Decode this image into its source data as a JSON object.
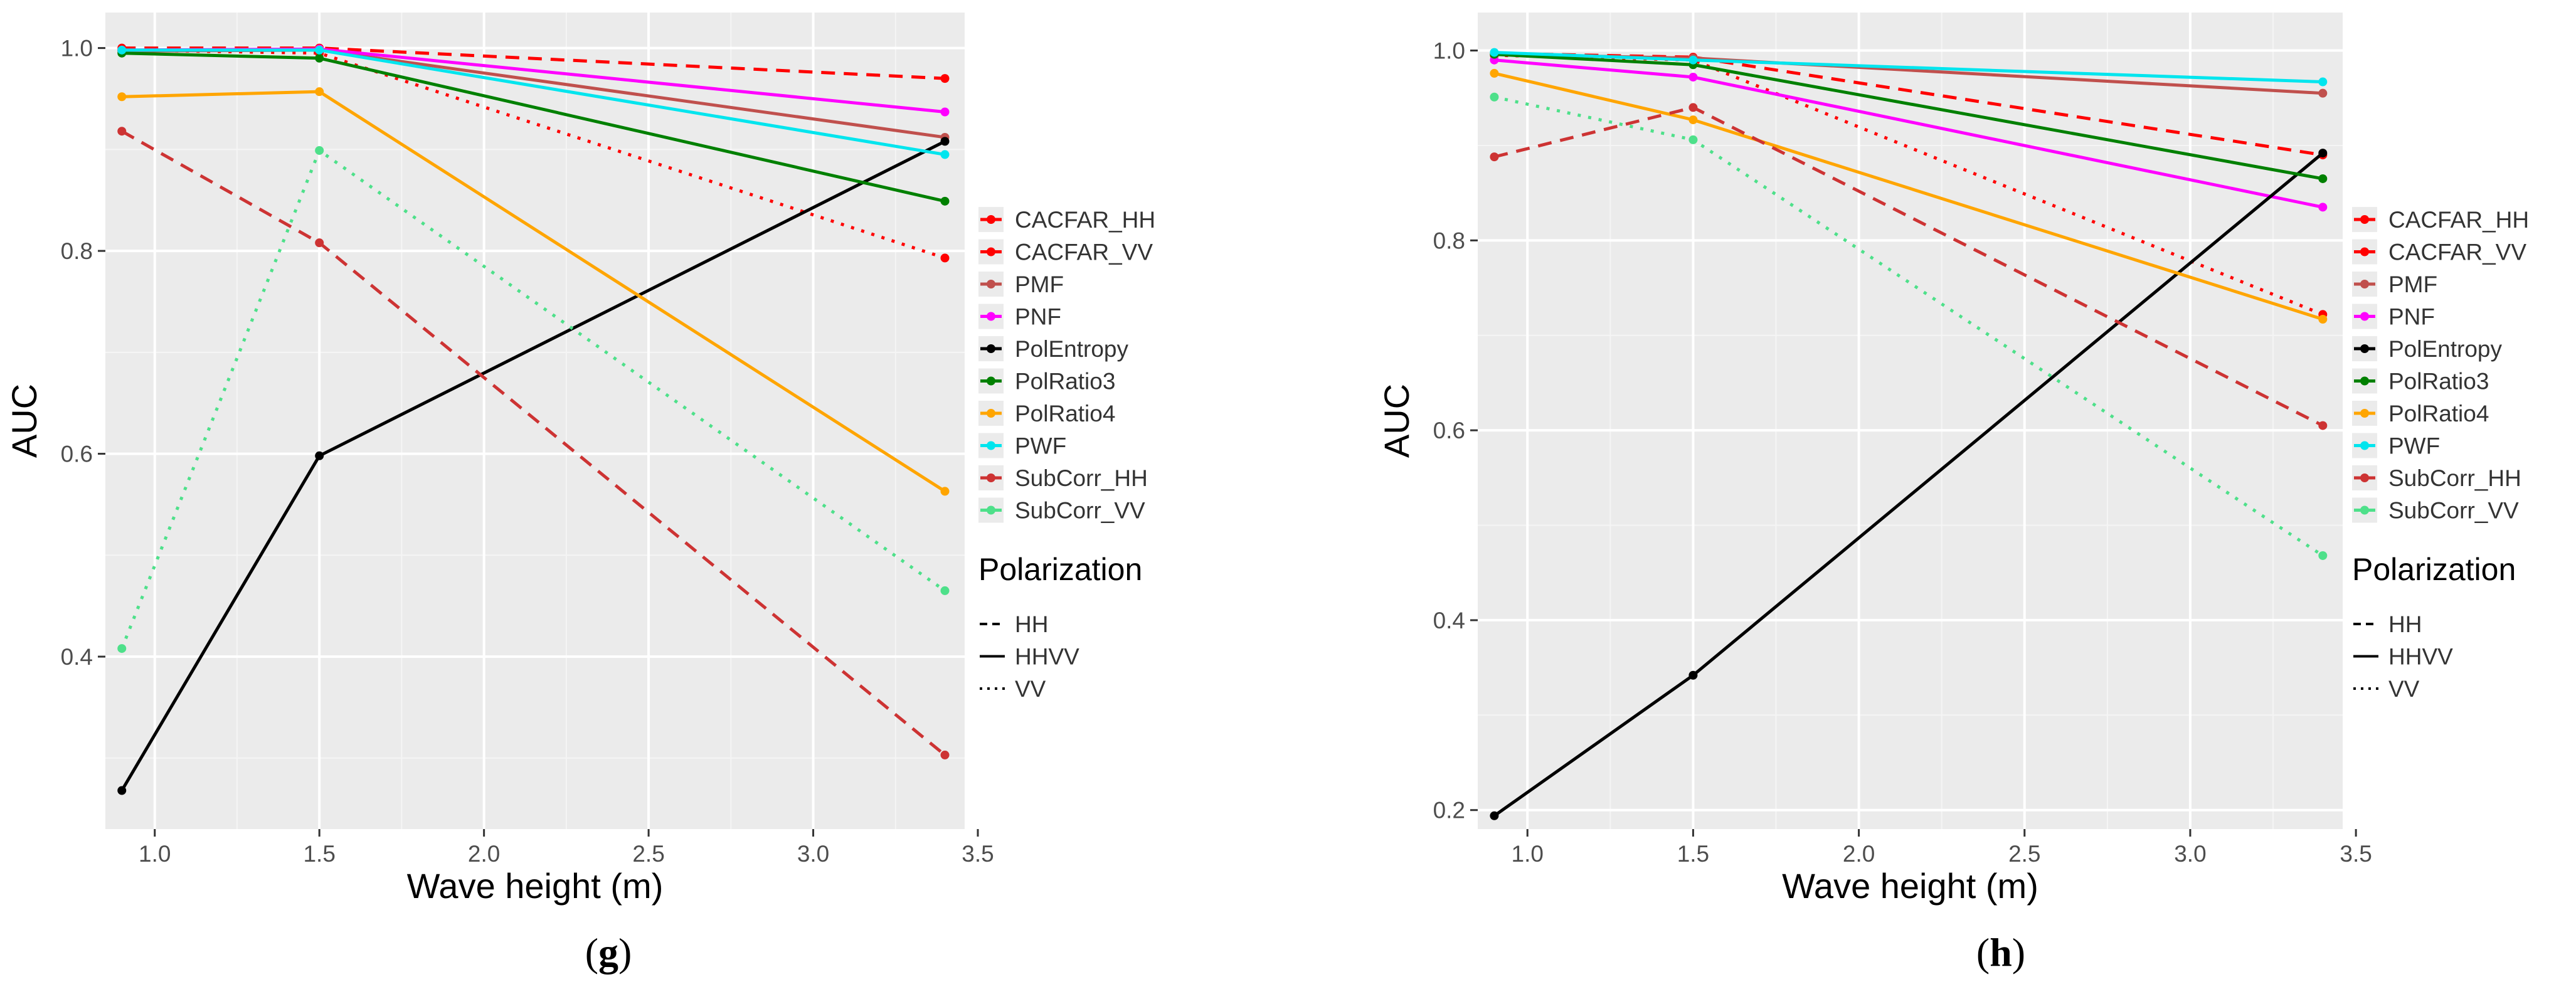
{
  "chart_data": [
    {
      "type": "line",
      "panel_label": "(g)",
      "xlabel": "Wave height (m)",
      "ylabel": "AUC",
      "xlim": [
        0.85,
        3.46
      ],
      "ylim": [
        0.23,
        1.035
      ],
      "xticks": [
        1.0,
        1.5,
        2.0,
        2.5,
        3.0,
        3.5
      ],
      "xtick_labels": [
        "1.0",
        "1.5",
        "2.0",
        "2.5",
        "3.0",
        "3.5"
      ],
      "yticks": [
        0.4,
        0.6,
        0.8,
        1.0
      ],
      "ytick_labels": [
        "0.4",
        "0.6",
        "0.8",
        "1.0"
      ],
      "x": [
        0.9,
        1.5,
        3.4
      ],
      "grid": true,
      "legend_position": "right",
      "series": [
        {
          "name": "CACFAR_HH",
          "color": "#ff0000",
          "dash": "HH",
          "values": [
            1.0,
            1.0,
            0.97
          ]
        },
        {
          "name": "CACFAR_VV",
          "color": "#ff0000",
          "dash": "VV",
          "values": [
            0.998,
            0.995,
            0.793
          ]
        },
        {
          "name": "PMF",
          "color": "#c0504d",
          "dash": "HHVV",
          "values": [
            0.997,
            0.998,
            0.912
          ]
        },
        {
          "name": "PNF",
          "color": "#ff00ff",
          "dash": "HHVV",
          "values": [
            0.998,
            0.999,
            0.937
          ]
        },
        {
          "name": "PolEntropy",
          "color": "#000000",
          "dash": "HHVV",
          "values": [
            0.268,
            0.598,
            0.908
          ]
        },
        {
          "name": "PolRatio3",
          "color": "#008000",
          "dash": "HHVV",
          "values": [
            0.995,
            0.99,
            0.849
          ]
        },
        {
          "name": "PolRatio4",
          "color": "#ffa500",
          "dash": "HHVV",
          "values": [
            0.952,
            0.957,
            0.563
          ]
        },
        {
          "name": "PWF",
          "color": "#00e5ee",
          "dash": "HHVV",
          "values": [
            0.998,
            0.998,
            0.895
          ]
        },
        {
          "name": "SubCorr_HH",
          "color": "#cd3333",
          "dash": "HH",
          "values": [
            0.918,
            0.808,
            0.303
          ]
        },
        {
          "name": "SubCorr_VV",
          "color": "#4ee08a",
          "dash": "VV",
          "values": [
            0.408,
            0.899,
            0.465
          ]
        }
      ]
    },
    {
      "type": "line",
      "panel_label": "(h)",
      "xlabel": "Wave height (m)",
      "ylabel": "AUC",
      "xlim": [
        0.85,
        3.46
      ],
      "ylim": [
        0.18,
        1.04
      ],
      "xticks": [
        1.0,
        1.5,
        2.0,
        2.5,
        3.0,
        3.5
      ],
      "xtick_labels": [
        "1.0",
        "1.5",
        "2.0",
        "2.5",
        "3.0",
        "3.5"
      ],
      "yticks": [
        0.2,
        0.4,
        0.6,
        0.8,
        1.0
      ],
      "ytick_labels": [
        "0.2",
        "0.4",
        "0.6",
        "0.8",
        "1.0"
      ],
      "x": [
        0.9,
        1.5,
        3.4
      ],
      "grid": true,
      "legend_position": "right",
      "series": [
        {
          "name": "CACFAR_HH",
          "color": "#ff0000",
          "dash": "HH",
          "values": [
            0.997,
            0.993,
            0.89
          ]
        },
        {
          "name": "CACFAR_VV",
          "color": "#ff0000",
          "dash": "VV",
          "values": [
            0.995,
            0.99,
            0.722
          ]
        },
        {
          "name": "PMF",
          "color": "#c0504d",
          "dash": "HHVV",
          "values": [
            0.996,
            0.992,
            0.955
          ]
        },
        {
          "name": "PNF",
          "color": "#ff00ff",
          "dash": "HHVV",
          "values": [
            0.99,
            0.972,
            0.835
          ]
        },
        {
          "name": "PolEntropy",
          "color": "#000000",
          "dash": "HHVV",
          "values": [
            0.194,
            0.342,
            0.892
          ]
        },
        {
          "name": "PolRatio3",
          "color": "#008000",
          "dash": "HHVV",
          "values": [
            0.996,
            0.985,
            0.865
          ]
        },
        {
          "name": "PolRatio4",
          "color": "#ffa500",
          "dash": "HHVV",
          "values": [
            0.976,
            0.927,
            0.717
          ]
        },
        {
          "name": "PWF",
          "color": "#00e5ee",
          "dash": "HHVV",
          "values": [
            0.998,
            0.99,
            0.967
          ]
        },
        {
          "name": "SubCorr_HH",
          "color": "#cd3333",
          "dash": "HH",
          "values": [
            0.888,
            0.94,
            0.605
          ]
        },
        {
          "name": "SubCorr_VV",
          "color": "#4ee08a",
          "dash": "VV",
          "values": [
            0.951,
            0.906,
            0.468
          ]
        }
      ]
    }
  ],
  "legend": {
    "series_title": "",
    "polarization_title": "Polarization",
    "polarization_items": [
      {
        "label": "HH",
        "dash": "HH"
      },
      {
        "label": "HHVV",
        "dash": "HHVV"
      },
      {
        "label": "VV",
        "dash": "VV"
      }
    ]
  },
  "colors": {
    "panel_background": "#ebebeb",
    "grid_major": "#ffffff",
    "grid_minor": "#f5f5f5",
    "axis_text": "#4d4d4d",
    "title_text": "#000000"
  }
}
